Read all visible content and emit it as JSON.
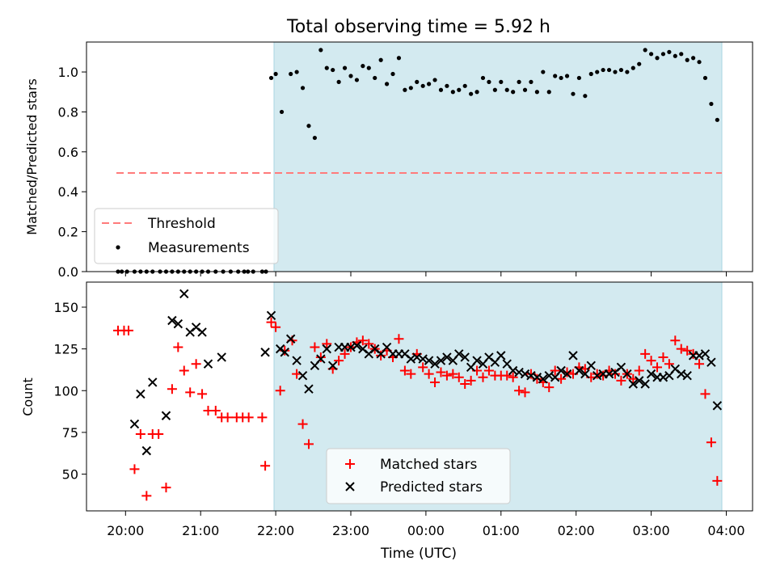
{
  "chart_data": [
    {
      "type": "scatter",
      "title": "Total observing time = 5.92 h",
      "xlabel": "",
      "ylabel": "Matched/Predicted stars",
      "ylim": [
        0,
        1.15
      ],
      "yticks": [
        0.0,
        0.2,
        0.4,
        0.6,
        0.8,
        1.0
      ],
      "ytick_labels": [
        "0.0",
        "0.2",
        "0.4",
        "0.6",
        "0.8",
        "1.0"
      ],
      "x_unit": "hours since 20:00 UTC",
      "xlim": [
        -0.52,
        8.35
      ],
      "observing_window": [
        1.96,
        7.88
      ],
      "legend": {
        "position": "lower-left",
        "entries": [
          "Threshold",
          "Measurements"
        ]
      },
      "threshold": {
        "name": "Threshold",
        "y": 0.5,
        "x_range": [
          -0.12,
          7.88
        ],
        "color": "#ff7b7b"
      },
      "series": [
        {
          "name": "Measurements",
          "color": "#000000",
          "x": [
            -0.1,
            -0.05,
            0.02,
            0.12,
            0.2,
            0.28,
            0.36,
            0.46,
            0.54,
            0.62,
            0.7,
            0.78,
            0.86,
            0.94,
            1.02,
            1.1,
            1.2,
            1.3,
            1.4,
            1.5,
            1.58,
            1.63,
            1.7,
            1.82,
            1.87,
            1.94,
            2.0,
            2.08,
            2.2,
            2.28,
            2.36,
            2.44,
            2.52,
            2.6,
            2.68,
            2.76,
            2.84,
            2.92,
            3.0,
            3.08,
            3.16,
            3.24,
            3.32,
            3.4,
            3.48,
            3.56,
            3.64,
            3.72,
            3.8,
            3.88,
            3.96,
            4.04,
            4.12,
            4.2,
            4.28,
            4.36,
            4.44,
            4.52,
            4.6,
            4.68,
            4.76,
            4.84,
            4.92,
            5.0,
            5.08,
            5.16,
            5.24,
            5.32,
            5.4,
            5.48,
            5.56,
            5.64,
            5.72,
            5.8,
            5.88,
            5.96,
            6.04,
            6.12,
            6.2,
            6.28,
            6.36,
            6.44,
            6.52,
            6.6,
            6.68,
            6.76,
            6.84,
            6.92,
            7.0,
            7.08,
            7.16,
            7.24,
            7.32,
            7.4,
            7.48,
            7.56,
            7.64,
            7.72,
            7.8,
            7.88
          ],
          "y": [
            0.0,
            0.0,
            0.0,
            0.0,
            0.0,
            0.0,
            0.0,
            0.0,
            0.0,
            0.0,
            0.0,
            0.0,
            0.0,
            0.0,
            0.0,
            0.0,
            0.0,
            0.0,
            0.0,
            0.0,
            0.0,
            0.0,
            0.0,
            0.0,
            0.0,
            0.97,
            0.99,
            0.8,
            0.99,
            1.0,
            0.92,
            0.73,
            0.67,
            1.11,
            1.02,
            1.01,
            0.95,
            1.02,
            0.98,
            0.96,
            1.03,
            1.02,
            0.97,
            1.06,
            0.94,
            0.99,
            1.07,
            0.91,
            0.92,
            0.95,
            0.93,
            0.94,
            0.96,
            0.91,
            0.93,
            0.9,
            0.91,
            0.93,
            0.89,
            0.9,
            0.97,
            0.95,
            0.91,
            0.95,
            0.91,
            0.9,
            0.95,
            0.91,
            0.95,
            0.9,
            1.0,
            0.9,
            0.98,
            0.97,
            0.98,
            0.89,
            0.97,
            0.88,
            0.99,
            1.0,
            1.01,
            1.01,
            1.0,
            1.01,
            1.0,
            1.02,
            1.04,
            1.11,
            1.09,
            1.07,
            1.09,
            1.1,
            1.08,
            1.09,
            1.06,
            1.07,
            1.05,
            0.97,
            0.84,
            0.76
          ]
        }
      ]
    },
    {
      "type": "scatter",
      "title": "",
      "xlabel": "Time (UTC)",
      "ylabel": "Count",
      "ylim": [
        28,
        165
      ],
      "yticks": [
        50,
        75,
        100,
        125,
        150
      ],
      "ytick_labels": [
        "50",
        "75",
        "100",
        "125",
        "150"
      ],
      "x_unit": "hours since 20:00 UTC",
      "xlim": [
        -0.52,
        8.35
      ],
      "xticks": [
        0,
        1,
        2,
        3,
        4,
        5,
        6,
        7,
        8
      ],
      "xtick_labels": [
        "20:00",
        "21:00",
        "22:00",
        "23:00",
        "00:00",
        "01:00",
        "02:00",
        "03:00",
        "04:00"
      ],
      "observing_window": [
        1.96,
        7.88
      ],
      "legend": {
        "position": "lower-center",
        "entries": [
          "Matched stars",
          "Predicted stars"
        ]
      },
      "series": [
        {
          "name": "Matched stars",
          "color": "#ff0000",
          "marker": "+",
          "x": [
            -0.1,
            -0.02,
            0.04,
            0.12,
            0.2,
            0.28,
            0.36,
            0.44,
            0.54,
            0.62,
            0.7,
            0.78,
            0.86,
            0.94,
            1.02,
            1.1,
            1.2,
            1.28,
            1.36,
            1.48,
            1.56,
            1.64,
            1.82,
            1.86,
            1.94,
            2.0,
            2.06,
            2.12,
            2.22,
            2.28,
            2.36,
            2.44,
            2.52,
            2.6,
            2.68,
            2.76,
            2.84,
            2.92,
            3.0,
            3.08,
            3.16,
            3.24,
            3.32,
            3.4,
            3.48,
            3.56,
            3.64,
            3.72,
            3.8,
            3.88,
            3.96,
            4.04,
            4.12,
            4.2,
            4.28,
            4.36,
            4.44,
            4.52,
            4.6,
            4.68,
            4.76,
            4.84,
            4.92,
            5.0,
            5.08,
            5.16,
            5.24,
            5.32,
            5.4,
            5.48,
            5.56,
            5.64,
            5.72,
            5.8,
            5.88,
            5.96,
            6.04,
            6.12,
            6.2,
            6.28,
            6.36,
            6.44,
            6.52,
            6.6,
            6.68,
            6.76,
            6.84,
            6.92,
            7.0,
            7.08,
            7.16,
            7.24,
            7.32,
            7.4,
            7.48,
            7.56,
            7.64,
            7.72,
            7.8,
            7.88
          ],
          "y": [
            136,
            136,
            136,
            53,
            74,
            37,
            74,
            74,
            42,
            101,
            126,
            112,
            99,
            116,
            98,
            88,
            88,
            84,
            84,
            84,
            84,
            84,
            84,
            55,
            141,
            138,
            100,
            124,
            130,
            110,
            80,
            68,
            126,
            120,
            128,
            113,
            118,
            122,
            126,
            129,
            130,
            128,
            125,
            121,
            124,
            120,
            131,
            112,
            110,
            122,
            114,
            110,
            105,
            111,
            109,
            110,
            108,
            104,
            106,
            112,
            108,
            112,
            109,
            109,
            109,
            108,
            100,
            99,
            110,
            107,
            105,
            102,
            112,
            107,
            111,
            110,
            114,
            113,
            108,
            110,
            109,
            112,
            110,
            106,
            110,
            107,
            112,
            122,
            118,
            114,
            120,
            116,
            130,
            125,
            124,
            122,
            116,
            98,
            69,
            46
          ]
        },
        {
          "name": "Predicted stars",
          "color": "#000000",
          "marker": "x",
          "x": [
            0.12,
            0.2,
            0.28,
            0.36,
            0.54,
            0.62,
            0.7,
            0.78,
            0.86,
            0.94,
            1.02,
            1.1,
            1.28,
            1.86,
            1.94,
            2.06,
            2.12,
            2.2,
            2.28,
            2.36,
            2.44,
            2.52,
            2.6,
            2.68,
            2.76,
            2.84,
            2.92,
            3.0,
            3.08,
            3.16,
            3.24,
            3.32,
            3.4,
            3.48,
            3.56,
            3.64,
            3.72,
            3.8,
            3.88,
            3.96,
            4.04,
            4.12,
            4.2,
            4.28,
            4.36,
            4.44,
            4.52,
            4.6,
            4.68,
            4.76,
            4.84,
            4.92,
            5.0,
            5.08,
            5.16,
            5.24,
            5.32,
            5.4,
            5.48,
            5.56,
            5.64,
            5.72,
            5.8,
            5.88,
            5.96,
            6.04,
            6.12,
            6.2,
            6.28,
            6.36,
            6.44,
            6.52,
            6.6,
            6.68,
            6.76,
            6.84,
            6.92,
            7.0,
            7.08,
            7.16,
            7.24,
            7.32,
            7.4,
            7.48,
            7.56,
            7.64,
            7.72,
            7.8,
            7.88
          ],
          "y": [
            80,
            98,
            64,
            105,
            85,
            142,
            140,
            158,
            135,
            138,
            135,
            116,
            120,
            123,
            145,
            125,
            123,
            131,
            118,
            109,
            101,
            115,
            119,
            125,
            115,
            126,
            126,
            126,
            127,
            125,
            122,
            125,
            122,
            126,
            122,
            122,
            122,
            119,
            120,
            119,
            118,
            116,
            118,
            120,
            118,
            122,
            120,
            114,
            118,
            116,
            120,
            117,
            121,
            116,
            112,
            111,
            110,
            109,
            108,
            107,
            109,
            108,
            112,
            110,
            121,
            112,
            110,
            115,
            109,
            110,
            110,
            111,
            114,
            110,
            104,
            106,
            104,
            110,
            108,
            108,
            109,
            113,
            110,
            109,
            121,
            121,
            122,
            117,
            91
          ]
        }
      ]
    }
  ]
}
